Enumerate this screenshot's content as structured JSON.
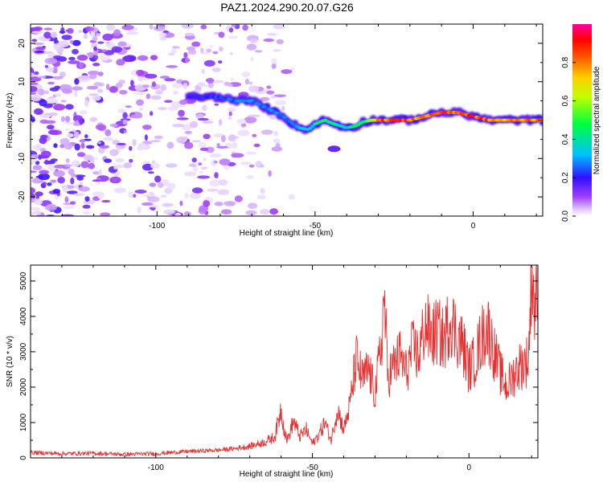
{
  "title": "PAZ1.2024.290.20.07.G26",
  "chart_data": [
    {
      "type": "heatmap",
      "xlabel": "Height of straight line (km)",
      "ylabel": "Frequency (Hz)",
      "xlim": [
        -140,
        22
      ],
      "ylim": [
        -25,
        25
      ],
      "x_ticks": [
        -100,
        -50,
        0
      ],
      "x_tick_labels": [
        "-100",
        "-50",
        "0"
      ],
      "y_ticks": [
        20,
        10,
        0,
        -10,
        -20
      ],
      "y_tick_labels": [
        "20",
        "10",
        "0",
        "-10",
        "-20"
      ],
      "colorbar": {
        "label": "Normalized spectral amplitude",
        "range": [
          0,
          1
        ],
        "ticks": [
          0.0,
          0.2,
          0.4,
          0.6,
          0.8
        ],
        "tick_labels": [
          "0.0",
          "0.2",
          "0.4",
          "0.6",
          "0.8"
        ],
        "colormap": "rainbow (white→purple→blue→cyan→green→yellow→orange→red→magenta)"
      },
      "ridge": {
        "x": [
          -90,
          -85,
          -80,
          -75,
          -70,
          -65,
          -60,
          -57,
          -55,
          -52,
          -50,
          -47,
          -44,
          -40,
          -37,
          -35,
          -32,
          -30,
          -28,
          -25,
          -20,
          -15,
          -10,
          -5,
          0,
          5,
          10,
          15,
          20,
          22
        ],
        "y": [
          6,
          6,
          6,
          5,
          5,
          3,
          1,
          -1,
          -2,
          -2.5,
          -1,
          0,
          -1,
          -2,
          -1.5,
          -0.5,
          0,
          0,
          0,
          0,
          0,
          1,
          2,
          2,
          1,
          0,
          0,
          0,
          0,
          0
        ],
        "amplitude": [
          0.2,
          0.22,
          0.25,
          0.28,
          0.3,
          0.3,
          0.3,
          0.3,
          0.32,
          0.35,
          0.4,
          0.5,
          0.45,
          0.4,
          0.45,
          0.5,
          0.7,
          0.85,
          0.9,
          0.95,
          0.9,
          0.85,
          0.95,
          0.9,
          0.95,
          0.85,
          0.8,
          0.85,
          0.9,
          0.9
        ]
      },
      "noise_region_x": [
        -140,
        -65
      ],
      "noise_amplitude": [
        0.02,
        0.22
      ]
    },
    {
      "type": "line",
      "xlabel": "Height of straight line (km)",
      "ylabel": "SNR (10 * v/v)",
      "xlim": [
        -140,
        22
      ],
      "ylim": [
        0,
        5450
      ],
      "x_ticks": [
        -100,
        -50,
        0
      ],
      "x_tick_labels": [
        "-100",
        "-50",
        "0"
      ],
      "y_ticks": [
        0,
        1000,
        2000,
        3000,
        4000,
        5000
      ],
      "y_tick_labels": [
        "0",
        "1000",
        "2000",
        "3000",
        "4000",
        "5000"
      ],
      "color": "#e83030",
      "series": [
        {
          "x": [
            -140,
            -130,
            -120,
            -110,
            -100,
            -90,
            -80,
            -75,
            -70,
            -65,
            -62,
            -60,
            -59,
            -58,
            -56,
            -54,
            -52,
            -50,
            -48,
            -46,
            -44,
            -42,
            -40,
            -38,
            -36,
            -34,
            -32,
            -30,
            -28,
            -27,
            -26,
            -24,
            -22,
            -20,
            -18,
            -16,
            -14,
            -12,
            -10,
            -8,
            -6,
            -4,
            -2,
            0,
            2,
            4,
            6,
            8,
            10,
            12,
            14,
            16,
            18,
            19,
            19.5,
            20,
            21,
            22
          ],
          "y": [
            150,
            120,
            130,
            100,
            120,
            180,
            220,
            260,
            330,
            450,
            600,
            1400,
            800,
            500,
            1050,
            600,
            800,
            400,
            650,
            1000,
            500,
            1400,
            800,
            1500,
            2800,
            2200,
            2500,
            1800,
            3200,
            4600,
            2300,
            2600,
            2900,
            2400,
            3100,
            2900,
            3800,
            3400,
            3600,
            3300,
            4000,
            3500,
            3200,
            2500,
            2800,
            3400,
            3700,
            3000,
            2400,
            2000,
            2300,
            2600,
            2700,
            2800,
            4000,
            5400,
            4200,
            4700
          ]
        }
      ]
    }
  ]
}
